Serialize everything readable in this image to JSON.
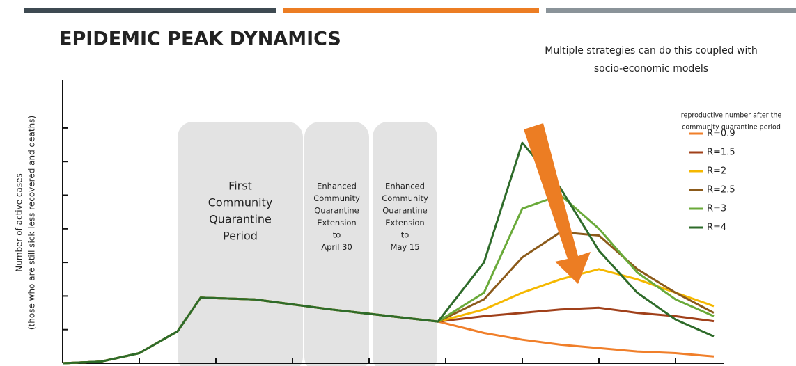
{
  "chart_data": {
    "type": "line",
    "title": "EPIDEMIC PEAK DYNAMICS",
    "annotation": [
      "Multiple strategies can do this coupled with",
      "socio-economic models"
    ],
    "legend_title": [
      "reproductive number after the",
      "community quarantine period"
    ],
    "ylabel": [
      "Number of active cases",
      "(those who are still sick less recovered and deaths)"
    ],
    "regions": [
      {
        "lines": [
          "First",
          "Community",
          "Quarantine",
          "Period"
        ]
      },
      {
        "lines": [
          "Enhanced",
          "Community",
          "Quarantine",
          "Extension",
          "to",
          "April 30"
        ]
      },
      {
        "lines": [
          "Enhanced",
          "Community",
          "Quarantine",
          "Extension",
          "to",
          "May 15"
        ]
      }
    ],
    "x": [
      0,
      0.5,
      1,
      1.5,
      1.8,
      2.5,
      3.5,
      4.9,
      5.5,
      6,
      6.5,
      7,
      7.5,
      8,
      8.5
    ],
    "series": [
      {
        "name": "R=0.9",
        "color": "#f07f2a",
        "values": [
          0,
          0.05,
          0.3,
          0.95,
          1.95,
          1.9,
          1.6,
          1.24,
          0.9,
          0.7,
          0.55,
          0.45,
          0.35,
          0.3,
          0.2
        ]
      },
      {
        "name": "R=1.5",
        "color": "#a0401a",
        "values": [
          0,
          0.05,
          0.3,
          0.95,
          1.95,
          1.9,
          1.6,
          1.24,
          1.4,
          1.5,
          1.6,
          1.65,
          1.5,
          1.4,
          1.25
        ]
      },
      {
        "name": "R=2",
        "color": "#f5b800",
        "values": [
          0,
          0.05,
          0.3,
          0.95,
          1.95,
          1.9,
          1.6,
          1.24,
          1.6,
          2.1,
          2.5,
          2.8,
          2.5,
          2.1,
          1.7
        ]
      },
      {
        "name": "R=2.5",
        "color": "#8b5a1a",
        "values": [
          0,
          0.05,
          0.3,
          0.95,
          1.95,
          1.9,
          1.6,
          1.24,
          1.9,
          3.15,
          3.9,
          3.8,
          2.8,
          2.1,
          1.5
        ]
      },
      {
        "name": "R=3",
        "color": "#6aaa3a",
        "values": [
          0,
          0.05,
          0.3,
          0.95,
          1.95,
          1.9,
          1.6,
          1.24,
          2.1,
          4.6,
          5.0,
          4.0,
          2.7,
          1.9,
          1.4
        ]
      },
      {
        "name": "R=4",
        "color": "#2e6b2a",
        "values": [
          0,
          0.05,
          0.3,
          0.95,
          1.95,
          1.9,
          1.6,
          1.24,
          3.0,
          6.56,
          5.2,
          3.35,
          2.1,
          1.3,
          0.8
        ]
      }
    ],
    "xlim": [
      0,
      8.6
    ],
    "xticks": [
      0,
      1,
      2,
      3,
      4,
      5,
      6,
      7,
      8
    ],
    "ylim": [
      0,
      8.5
    ],
    "yticks": [
      0,
      1,
      2,
      3,
      4,
      5,
      6,
      7
    ]
  }
}
